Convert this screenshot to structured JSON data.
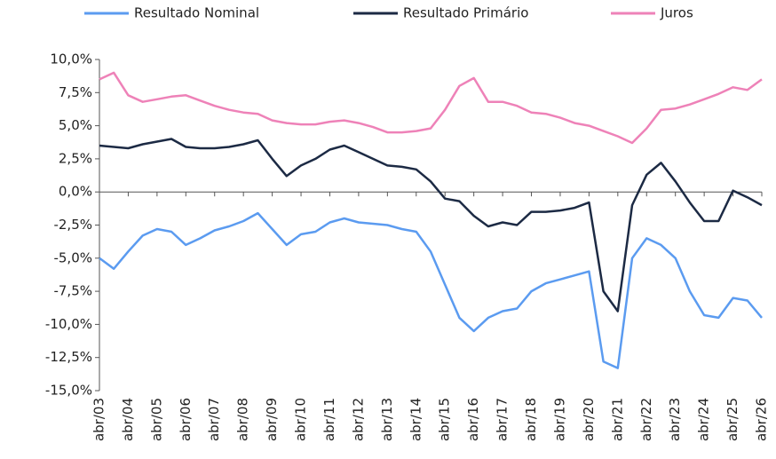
{
  "chart_data": {
    "type": "line",
    "categories": [
      "abr/03",
      null,
      "abr/04",
      null,
      "abr/05",
      null,
      "abr/06",
      null,
      "abr/07",
      null,
      "abr/08",
      null,
      "abr/09",
      null,
      "abr/10",
      null,
      "abr/11",
      null,
      "abr/12",
      null,
      "abr/13",
      null,
      "abr/14",
      null,
      "abr/15",
      null,
      "abr/16",
      null,
      "abr/17",
      null,
      "abr/18",
      null,
      "abr/19",
      null,
      "abr/20",
      null,
      "abr/21",
      null,
      "abr/22",
      null,
      "abr/23",
      null,
      "abr/24",
      null,
      "abr/25",
      null,
      "abr/26"
    ],
    "series": [
      {
        "name": "Resultado Nominal",
        "color": "#5b9bf0",
        "values": [
          -5.0,
          -5.8,
          -4.5,
          -3.3,
          -2.8,
          -3.0,
          -4.0,
          -3.5,
          -2.9,
          -2.6,
          -2.2,
          -1.6,
          -2.8,
          -4.0,
          -3.2,
          -3.0,
          -2.3,
          -2.0,
          -2.3,
          -2.4,
          -2.5,
          -2.8,
          -3.0,
          -4.5,
          -7.0,
          -9.5,
          -10.5,
          -9.5,
          -9.0,
          -8.8,
          -7.5,
          -6.9,
          -6.6,
          -6.3,
          -6.0,
          -12.8,
          -13.3,
          -5.0,
          -3.5,
          -4.0,
          -5.0,
          -7.5,
          -9.3,
          -9.5,
          -8.0,
          -8.2,
          -9.5
        ]
      },
      {
        "name": "Resultado Primário",
        "color": "#1c2a44",
        "values": [
          3.5,
          3.4,
          3.3,
          3.6,
          3.8,
          4.0,
          3.4,
          3.3,
          3.3,
          3.4,
          3.6,
          3.9,
          2.5,
          1.2,
          2.0,
          2.5,
          3.2,
          3.5,
          3.0,
          2.5,
          2.0,
          1.9,
          1.7,
          0.8,
          -0.5,
          -0.7,
          -1.8,
          -2.6,
          -2.3,
          -2.5,
          -1.5,
          -1.5,
          -1.4,
          -1.2,
          -0.8,
          -7.5,
          -9.0,
          -1.0,
          1.3,
          2.2,
          0.8,
          -0.8,
          -2.2,
          -2.2,
          0.1,
          -0.4,
          -1.0
        ]
      },
      {
        "name": "Juros",
        "color": "#ee82b8",
        "values": [
          8.5,
          9.0,
          7.3,
          6.8,
          7.0,
          7.2,
          7.3,
          6.9,
          6.5,
          6.2,
          6.0,
          5.9,
          5.4,
          5.2,
          5.1,
          5.1,
          5.3,
          5.4,
          5.2,
          4.9,
          4.5,
          4.5,
          4.6,
          4.8,
          6.2,
          8.0,
          8.6,
          6.8,
          6.8,
          6.5,
          6.0,
          5.9,
          5.6,
          5.2,
          5.0,
          4.6,
          4.2,
          3.7,
          4.8,
          6.2,
          6.3,
          6.6,
          7.0,
          7.4,
          7.9,
          7.7,
          8.5
        ]
      }
    ],
    "ylim": [
      -15,
      10
    ],
    "yticks": [
      {
        "value": 10,
        "label": "10,0%"
      },
      {
        "value": 7.5,
        "label": "7,5%"
      },
      {
        "value": 5,
        "label": "5,0%"
      },
      {
        "value": 2.5,
        "label": "2,5%"
      },
      {
        "value": 0,
        "label": "0,0%"
      },
      {
        "value": -2.5,
        "label": "-2,5%"
      },
      {
        "value": -5,
        "label": "-5,0%"
      },
      {
        "value": -7.5,
        "label": "-7,5%"
      },
      {
        "value": -10,
        "label": "-10,0%"
      },
      {
        "value": -12.5,
        "label": "-12,5%"
      },
      {
        "value": -15,
        "label": "-15,0%"
      }
    ],
    "legend": "top"
  }
}
